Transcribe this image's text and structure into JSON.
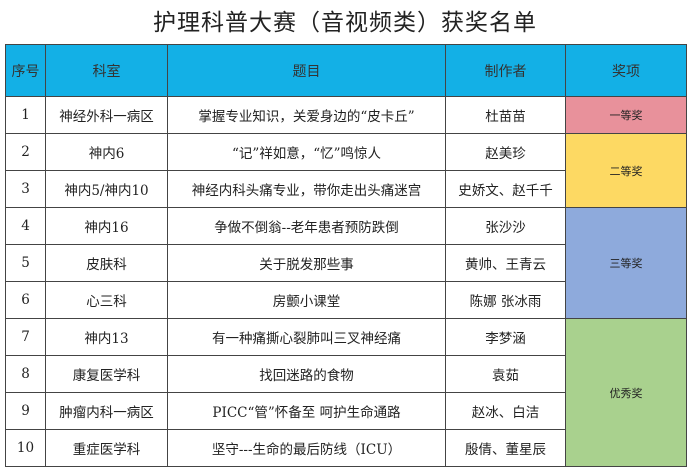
{
  "title": "护理科普大赛（音视频类）获奖名单",
  "headers": [
    "序号",
    "科室",
    "题目",
    "制作者",
    "奖项"
  ],
  "rows": [
    {
      "no": "1",
      "dept": "神经外科一病区",
      "topic": "掌握专业知识，关爱身边的“皮卡丘”",
      "author": "杜苗苗"
    },
    {
      "no": "2",
      "dept": "神内6",
      "topic": "“记”祥如意，“忆”鸣惊人",
      "author": "赵美珍"
    },
    {
      "no": "3",
      "dept": "神内5/神内10",
      "topic": "神经内科头痛专业，带你走出头痛迷宫",
      "author": "史娇文、赵千千"
    },
    {
      "no": "4",
      "dept": "神内16",
      "topic": "争做不倒翁--老年患者预防跌倒",
      "author": "张沙沙"
    },
    {
      "no": "5",
      "dept": "皮肤科",
      "topic": "关于脱发那些事",
      "author": "黄帅、王青云"
    },
    {
      "no": "6",
      "dept": "心三科",
      "topic": "房颤小课堂",
      "author": "陈娜 张冰雨"
    },
    {
      "no": "7",
      "dept": "神内13",
      "topic": "有一种痛撕心裂肺叫三叉神经痛",
      "author": "李梦涵"
    },
    {
      "no": "8",
      "dept": "康复医学科",
      "topic": "找回迷路的食物",
      "author": "袁茹"
    },
    {
      "no": "9",
      "dept": "肿瘤内科一病区",
      "topic": "PICC“管”怀备至 呵护生命通路",
      "author": "赵冰、白洁"
    },
    {
      "no": "10",
      "dept": "重症医学科",
      "topic": "坚守---生命的最后防线（ICU）",
      "author": "殷倩、董星辰"
    }
  ],
  "awards": [
    {
      "label": "一等奖",
      "color": "#e8919b"
    },
    {
      "label": "二等奖",
      "color": "#fdd963"
    },
    {
      "label": "三等奖",
      "color": "#8eaadc"
    },
    {
      "label": "优秀奖",
      "color": "#a9d18e"
    }
  ],
  "header_color": "#13b0e6"
}
